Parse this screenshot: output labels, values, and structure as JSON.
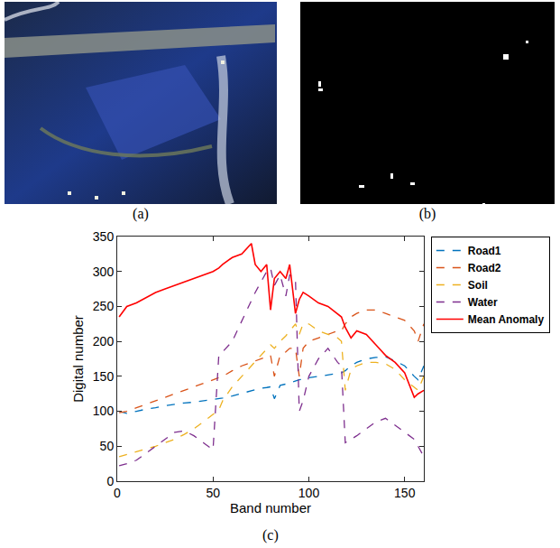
{
  "panels": [
    {
      "label": "(a)"
    },
    {
      "label": "(b)"
    }
  ],
  "chart_data": {
    "type": "line",
    "label": "(c)",
    "x_label": "Band number",
    "y_label": "Digital number",
    "x": [
      1,
      5,
      10,
      15,
      20,
      25,
      30,
      35,
      40,
      45,
      50,
      53,
      55,
      60,
      65,
      70,
      72,
      75,
      78,
      80,
      82,
      85,
      88,
      90,
      93,
      95,
      97,
      100,
      105,
      110,
      115,
      117,
      119,
      122,
      125,
      130,
      135,
      140,
      145,
      150,
      155,
      157,
      160
    ],
    "xlim": [
      0,
      160
    ],
    "xticks": [
      0,
      50,
      100,
      150
    ],
    "ylim": [
      0,
      350
    ],
    "yticks": [
      0,
      50,
      100,
      150,
      200,
      250,
      300,
      350
    ],
    "legend": "right",
    "series": [
      {
        "name": "Road1",
        "color": "#0072bd",
        "line_style": "dashed",
        "values": [
          100,
          97,
          100,
          103,
          105,
          108,
          110,
          112,
          113,
          115,
          117,
          118,
          119,
          122,
          126,
          130,
          131,
          133,
          134,
          135,
          118,
          137,
          139,
          141,
          143,
          145,
          146,
          148,
          150,
          152,
          154,
          155,
          158,
          165,
          170,
          175,
          177,
          178,
          172,
          165,
          150,
          145,
          165
        ]
      },
      {
        "name": "Road2",
        "color": "#d95319",
        "line_style": "dashed",
        "values": [
          98,
          100,
          105,
          110,
          115,
          120,
          125,
          130,
          135,
          140,
          145,
          148,
          150,
          158,
          165,
          170,
          172,
          175,
          178,
          180,
          150,
          180,
          185,
          190,
          190,
          150,
          190,
          200,
          205,
          210,
          215,
          215,
          225,
          235,
          240,
          245,
          245,
          240,
          235,
          230,
          215,
          200,
          225
        ]
      },
      {
        "name": "Soil",
        "color": "#edb120",
        "line_style": "dashed",
        "values": [
          35,
          38,
          42,
          46,
          50,
          55,
          60,
          67,
          75,
          85,
          95,
          102,
          115,
          135,
          150,
          165,
          170,
          180,
          188,
          195,
          190,
          200,
          208,
          215,
          225,
          210,
          225,
          225,
          215,
          210,
          205,
          200,
          130,
          160,
          165,
          170,
          170,
          168,
          160,
          145,
          135,
          130,
          150
        ]
      },
      {
        "name": "Water",
        "color": "#7e2f8e",
        "line_style": "dashed",
        "values": [
          22,
          25,
          30,
          40,
          50,
          60,
          70,
          72,
          65,
          55,
          45,
          180,
          185,
          200,
          230,
          260,
          270,
          285,
          300,
          305,
          280,
          295,
          265,
          295,
          290,
          100,
          115,
          150,
          175,
          190,
          170,
          165,
          55,
          60,
          65,
          75,
          85,
          90,
          80,
          70,
          60,
          50,
          35
        ]
      },
      {
        "name": "Mean Anomaly",
        "color": "#ff0000",
        "line_style": "solid",
        "values": [
          235,
          250,
          255,
          262,
          270,
          275,
          280,
          285,
          290,
          295,
          300,
          305,
          310,
          320,
          325,
          340,
          310,
          300,
          310,
          245,
          290,
          300,
          290,
          310,
          240,
          260,
          270,
          265,
          255,
          250,
          240,
          235,
          220,
          205,
          215,
          210,
          195,
          180,
          170,
          155,
          120,
          125,
          130
        ]
      }
    ]
  }
}
